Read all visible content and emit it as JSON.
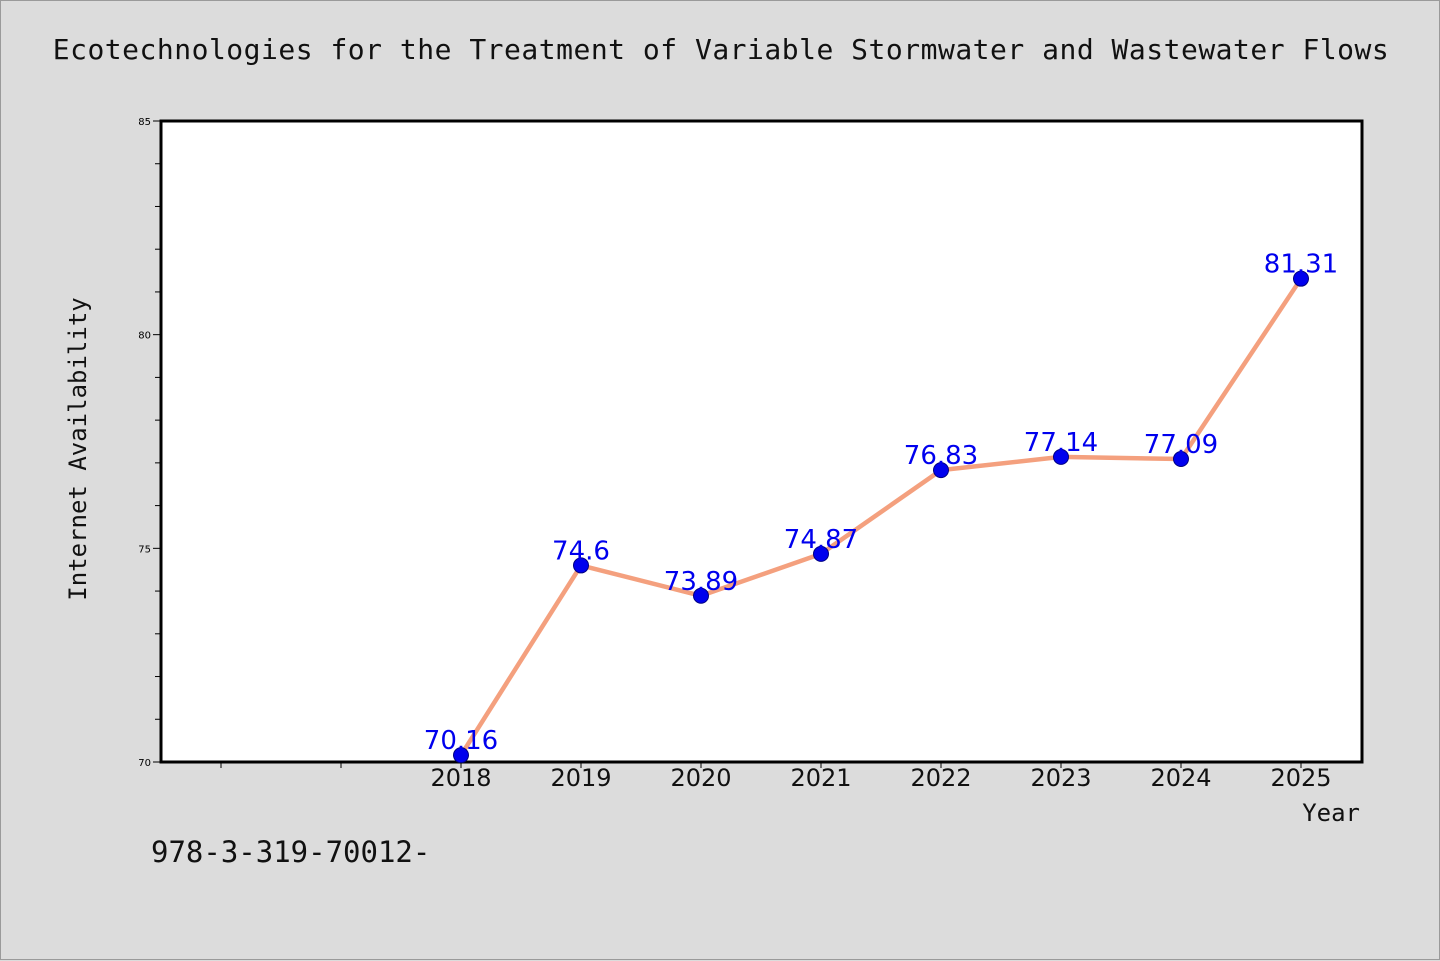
{
  "chart_data": {
    "type": "line",
    "title": "Ecotechnologies for the Treatment of Variable Stormwater and Wastewater Flows",
    "xlabel": "Year",
    "ylabel": "Internet Availability",
    "categories": [
      "2018",
      "2019",
      "2020",
      "2021",
      "2022",
      "2023",
      "2024",
      "2025"
    ],
    "series": [
      {
        "values": [
          70.16,
          74.6,
          73.89,
          74.87,
          76.83,
          77.14,
          77.09,
          81.31
        ],
        "labels": [
          "70.16",
          "74.6",
          "73.89",
          "74.87",
          "76.83",
          "77.14",
          "77.09",
          "81.31"
        ]
      }
    ],
    "ylim": [
      70,
      85
    ],
    "yticks": [
      "70",
      "75",
      "80",
      "85"
    ],
    "grid": false,
    "legend": "none",
    "colors": {
      "line": "#f4a07e",
      "marker": "#0000ee",
      "data_label": "#0000ee",
      "plot_bg": "#ffffff",
      "page_bg": "#dcdcdc"
    }
  },
  "caption": "978-3-319-70012-"
}
